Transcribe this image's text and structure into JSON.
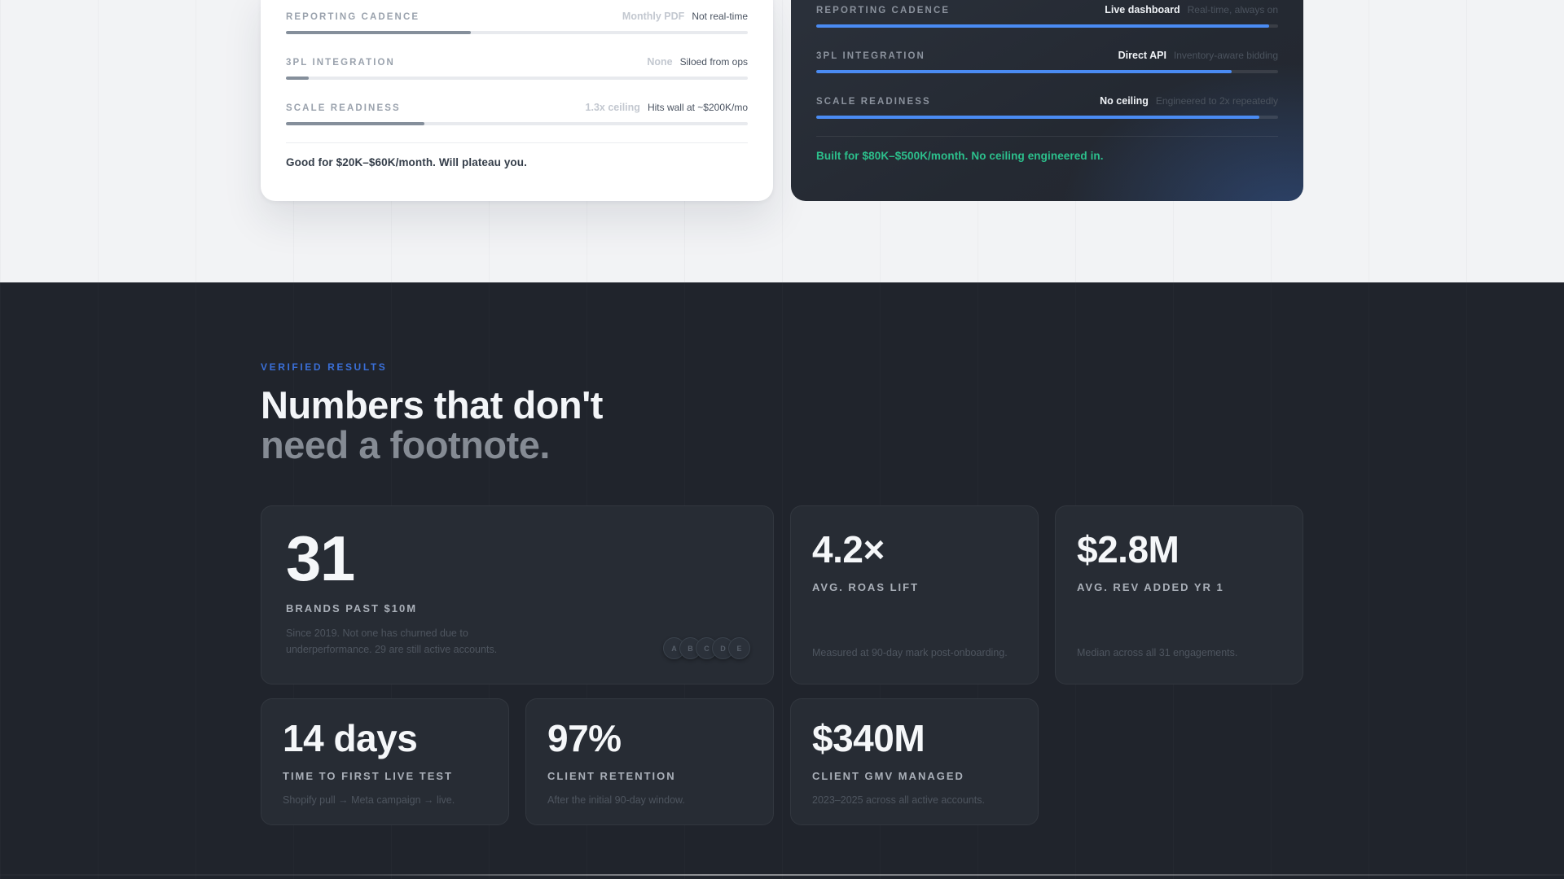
{
  "comparison": {
    "left": {
      "rows": [
        {
          "label": "REPORTING CADENCE",
          "value": "Monthly PDF",
          "note": "Not real-time",
          "progress": 40
        },
        {
          "label": "3PL INTEGRATION",
          "value": "None",
          "note": "Siloed from ops",
          "progress": 5
        },
        {
          "label": "SCALE READINESS",
          "value": "1.3x ceiling",
          "note": "Hits wall at ~$200K/mo",
          "progress": 30
        }
      ],
      "summary": "Good for $20K–$60K/month. Will plateau you."
    },
    "right": {
      "rows": [
        {
          "label": "REPORTING CADENCE",
          "value": "Live dashboard",
          "note": "Real-time, always on",
          "progress": 98
        },
        {
          "label": "3PL INTEGRATION",
          "value": "Direct API",
          "note": "Inventory-aware bidding",
          "progress": 90
        },
        {
          "label": "SCALE READINESS",
          "value": "No ceiling",
          "note": "Engineered to 2x repeatedly",
          "progress": 96
        }
      ],
      "summary": "Built for $80K–$500K/month. No ceiling engineered in."
    }
  },
  "results": {
    "eyebrow": "VERIFIED RESULTS",
    "heading_line1": "Numbers that don't",
    "heading_line2": "need a footnote.",
    "stats": [
      {
        "value": "31",
        "label": "BRANDS PAST $10M",
        "note": "Since 2019. Not one has churned due to underperformance. 29 are still active accounts.",
        "avatars": [
          "A",
          "B",
          "C",
          "D",
          "E"
        ]
      },
      {
        "value": "4.2×",
        "label": "AVG. ROAS LIFT",
        "note": "Measured at 90-day mark post-onboarding."
      },
      {
        "value": "$2.8M",
        "label": "AVG. REV ADDED YR 1",
        "note": "Median across all 31 engagements."
      },
      {
        "value": "14 days",
        "label": "TIME TO FIRST LIVE TEST",
        "note": "Shopify pull → Meta campaign → live."
      },
      {
        "value": "97%",
        "label": "CLIENT RETENTION",
        "note": "After the initial 90-day window."
      },
      {
        "value": "$340M",
        "label": "CLIENT GMV MANAGED",
        "note": "2023–2025 across all active accounts."
      }
    ]
  },
  "colors": {
    "accent_blue": "#4a8bf3",
    "accent_green": "#2cc08c",
    "eyebrow_blue": "#3a6fd8",
    "light_bar_fill": "#858f9b",
    "section_dark_bg": "#20242c",
    "section_light_bg": "#f2f3f5"
  }
}
